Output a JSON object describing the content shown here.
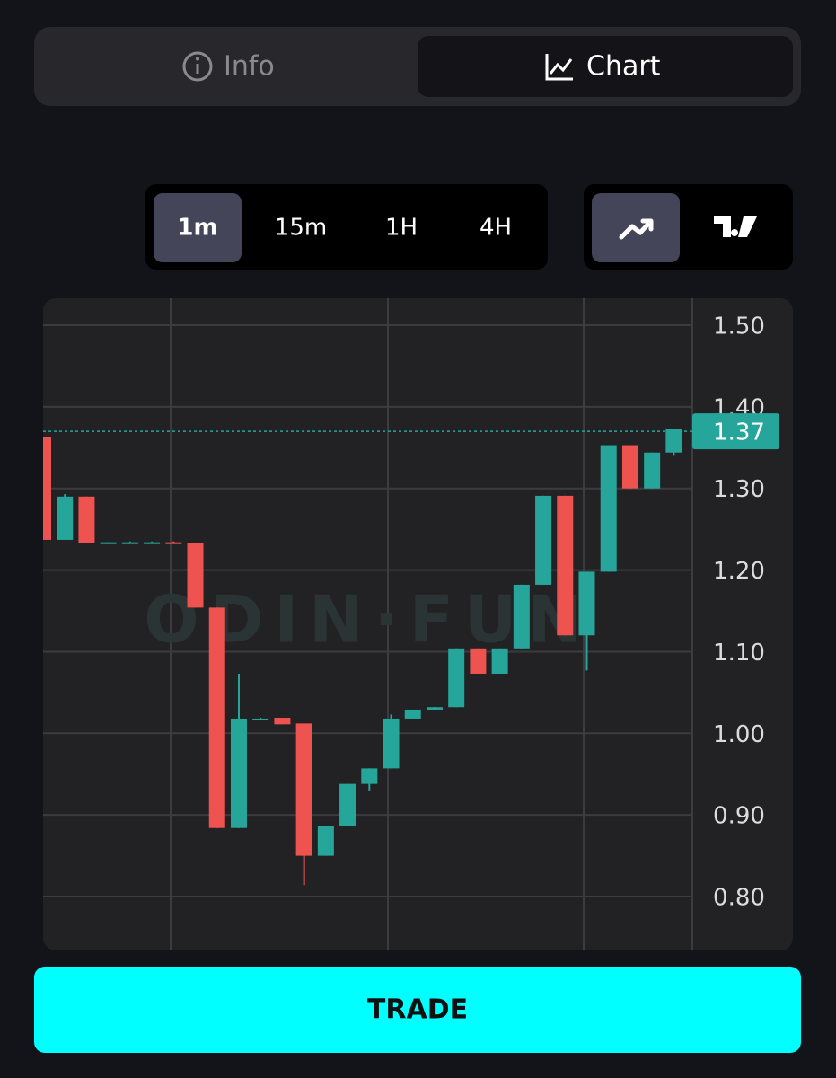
{
  "tabs": {
    "info": "Info",
    "chart": "Chart"
  },
  "timeframes": [
    "1m",
    "15m",
    "1H",
    "4H"
  ],
  "chart_data": {
    "type": "candlestick",
    "watermark": "ODIN·FUN",
    "open": [
      1.363,
      1.237,
      1.29,
      1.233,
      1.234,
      1.234,
      1.234,
      1.233,
      1.154,
      0.884,
      1.018,
      1.019,
      1.012,
      0.85,
      0.886,
      0.938,
      0.957,
      1.018,
      1.029,
      1.032,
      1.104,
      1.073,
      1.104,
      1.182,
      1.291,
      1.12,
      1.198,
      1.353,
      1.3,
      1.344
    ],
    "high": [
      1.363,
      1.293,
      1.29,
      1.234,
      1.235,
      1.235,
      1.235,
      1.233,
      1.154,
      1.073,
      1.019,
      1.019,
      1.012,
      0.886,
      0.938,
      0.957,
      1.023,
      1.029,
      1.032,
      1.104,
      1.104,
      1.104,
      1.182,
      1.291,
      1.291,
      1.198,
      1.353,
      1.353,
      1.344,
      1.373
    ],
    "low": [
      1.237,
      1.237,
      1.233,
      1.233,
      1.234,
      1.234,
      1.233,
      1.154,
      0.884,
      0.884,
      1.018,
      1.011,
      0.814,
      0.85,
      0.886,
      0.93,
      0.957,
      1.018,
      1.029,
      1.032,
      1.073,
      1.073,
      1.104,
      1.182,
      1.12,
      1.077,
      1.198,
      1.3,
      1.3,
      1.34
    ],
    "close": [
      1.237,
      1.29,
      1.233,
      1.234,
      1.234,
      1.234,
      1.233,
      1.154,
      0.884,
      1.018,
      1.018,
      1.011,
      0.85,
      0.886,
      0.938,
      0.957,
      1.018,
      1.029,
      1.032,
      1.104,
      1.073,
      1.104,
      1.182,
      1.291,
      1.12,
      1.198,
      1.353,
      1.3,
      1.344,
      1.373
    ],
    "up_color": "#26a69a",
    "down_color": "#ef5350",
    "last_price": 1.37,
    "ylim": [
      0.734,
      1.533
    ],
    "yticks": [
      {
        "value": 1.5,
        "label": "1.50"
      },
      {
        "value": 1.4,
        "label": "1.40"
      },
      {
        "value": 1.3,
        "label": "1.30"
      },
      {
        "value": 1.2,
        "label": "1.20"
      },
      {
        "value": 1.1,
        "label": "1.10"
      },
      {
        "value": 1.0,
        "label": "1.00"
      },
      {
        "value": 0.9,
        "label": "0.90"
      },
      {
        "value": 0.8,
        "label": "0.80"
      }
    ],
    "grid": true
  },
  "trade_button": "TRADE"
}
